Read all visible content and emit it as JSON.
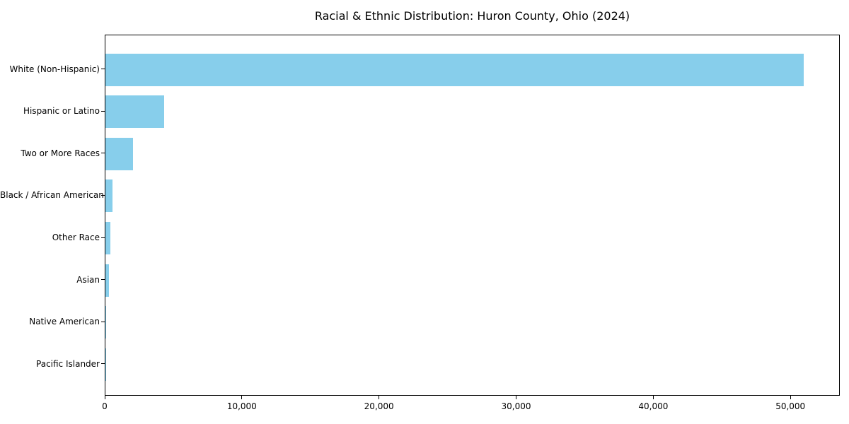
{
  "chart_data": {
    "type": "bar",
    "orientation": "horizontal",
    "title": "Racial & Ethnic Distribution: Huron County, Ohio (2024)",
    "categories": [
      "White (Non-Hispanic)",
      "Hispanic or Latino",
      "Two or More Races",
      "Black / African American",
      "Other Race",
      "Asian",
      "Native American",
      "Pacific Islander"
    ],
    "values": [
      51000,
      4300,
      2000,
      500,
      350,
      260,
      40,
      10
    ],
    "xlabel": "",
    "ylabel": "",
    "xlim": [
      0,
      53600
    ],
    "x_ticks": [
      {
        "value": 0,
        "label": "0"
      },
      {
        "value": 10000,
        "label": "10,000"
      },
      {
        "value": 20000,
        "label": "20,000"
      },
      {
        "value": 30000,
        "label": "30,000"
      },
      {
        "value": 40000,
        "label": "40,000"
      },
      {
        "value": 50000,
        "label": "50,000"
      }
    ],
    "grid": false,
    "legend_position": "none",
    "colors": {
      "bar": "#87CEEB",
      "text": "#000000",
      "spine": "#000000",
      "background": "#ffffff"
    }
  }
}
